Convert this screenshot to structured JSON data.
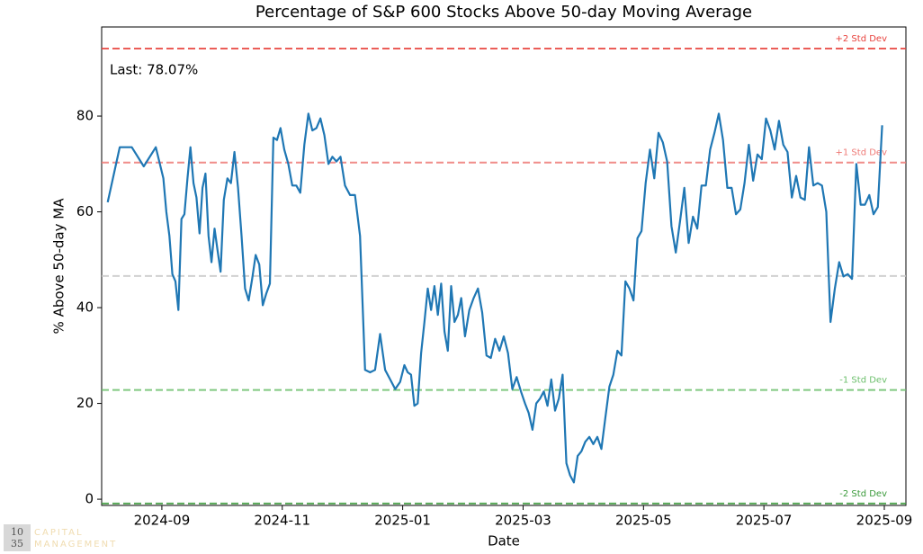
{
  "chart_data": {
    "type": "line",
    "title": "Percentage of S&P 600 Stocks Above 50-day Moving Average",
    "x_label": "Date",
    "y_label": "% Above 50-day MA",
    "annotation": "Last: 78.07%",
    "color": "#1f77b4",
    "xlim": [
      "2024-08",
      "2025-09"
    ],
    "xticks": [
      "2024-09",
      "2024-11",
      "2025-01",
      "2025-03",
      "2025-05",
      "2025-07",
      "2025-09"
    ],
    "ylim": [
      -1.3,
      98.6
    ],
    "yticks": [
      0,
      20,
      40,
      60,
      80
    ],
    "reference_lines": [
      {
        "value": 94.1,
        "label": "+2 Std Dev",
        "color": "#e8413c"
      },
      {
        "value": 70.3,
        "label": "+1 Std Dev",
        "color": "#ee7a76"
      },
      {
        "value": 46.6,
        "color": "#c8c8c8"
      },
      {
        "value": 22.8,
        "label": "-1 Std Dev",
        "color": "#6cbf6c"
      },
      {
        "value": -0.9,
        "label": "-2 Std Dev",
        "color": "#3a9a3a"
      }
    ],
    "x": [
      "2024-08",
      "2024-08",
      "2024-08",
      "2024-08",
      "2024-08",
      "2024-09",
      "2024-09",
      "2024-09",
      "2024-09",
      "2024-09",
      "2024-09",
      "2024-09",
      "2024-09",
      "2024-09",
      "2024-09",
      "2024-09",
      "2024-09",
      "2024-09",
      "2024-09",
      "2024-09",
      "2024-09",
      "2024-09",
      "2024-09",
      "2024-09",
      "2024-09",
      "2024-10",
      "2024-10",
      "2024-10",
      "2024-10",
      "2024-10",
      "2024-10",
      "2024-10",
      "2024-10",
      "2024-10",
      "2024-10",
      "2024-10",
      "2024-10",
      "2024-10",
      "2024-10",
      "2024-10",
      "2024-10",
      "2024-10",
      "2024-11",
      "2024-11",
      "2024-11",
      "2024-11",
      "2024-11",
      "2024-11",
      "2024-11",
      "2024-11",
      "2024-11",
      "2024-11",
      "2024-11",
      "2024-11",
      "2024-11",
      "2024-11",
      "2024-11",
      "2024-12",
      "2024-12",
      "2024-12",
      "2024-12",
      "2024-12",
      "2024-12",
      "2024-12",
      "2024-12",
      "2024-12",
      "2024-12",
      "2024-12",
      "2024-12",
      "2025-01",
      "2025-01",
      "2025-01",
      "2025-01",
      "2025-01",
      "2025-01",
      "2025-01",
      "2025-01",
      "2025-01",
      "2025-01",
      "2025-01",
      "2025-01",
      "2025-01",
      "2025-01",
      "2025-01",
      "2025-01",
      "2025-01",
      "2025-01",
      "2025-02",
      "2025-02",
      "2025-02",
      "2025-02",
      "2025-02",
      "2025-02",
      "2025-02",
      "2025-02",
      "2025-02",
      "2025-02",
      "2025-02",
      "2025-02",
      "2025-02",
      "2025-02",
      "2025-03",
      "2025-03",
      "2025-03",
      "2025-03",
      "2025-03",
      "2025-03",
      "2025-03",
      "2025-03",
      "2025-03",
      "2025-03",
      "2025-03",
      "2025-03",
      "2025-03",
      "2025-03",
      "2025-03",
      "2025-03",
      "2025-04",
      "2025-04",
      "2025-04",
      "2025-04",
      "2025-04",
      "2025-04",
      "2025-04",
      "2025-04",
      "2025-04",
      "2025-04",
      "2025-04",
      "2025-04",
      "2025-04",
      "2025-04",
      "2025-04",
      "2025-05",
      "2025-05",
      "2025-05",
      "2025-05",
      "2025-05",
      "2025-05",
      "2025-05",
      "2025-05",
      "2025-05",
      "2025-05",
      "2025-05",
      "2025-05",
      "2025-05",
      "2025-05",
      "2025-06",
      "2025-06",
      "2025-06",
      "2025-06",
      "2025-06",
      "2025-06",
      "2025-06",
      "2025-06",
      "2025-06",
      "2025-06",
      "2025-06",
      "2025-06",
      "2025-06",
      "2025-06",
      "2025-07",
      "2025-07",
      "2025-07",
      "2025-07",
      "2025-07",
      "2025-07",
      "2025-07",
      "2025-07",
      "2025-07",
      "2025-07",
      "2025-07",
      "2025-07",
      "2025-07",
      "2025-07",
      "2025-08",
      "2025-08",
      "2025-08",
      "2025-08",
      "2025-08",
      "2025-08",
      "2025-08",
      "2025-08",
      "2025-08",
      "2025-08",
      "2025-08",
      "2025-08",
      "2025-08",
      "2025-08"
    ],
    "values": [
      62,
      73.5,
      73.5,
      69.5,
      73.5,
      67,
      60,
      55,
      47,
      45.5,
      39.5,
      58.5,
      59.5,
      67,
      73.5,
      66,
      63,
      55.5,
      65,
      68,
      55,
      49.5,
      56.5,
      52,
      47.5,
      62.5,
      67,
      66,
      72.5,
      65,
      55,
      44,
      41.5,
      46,
      51,
      49,
      40.5,
      43,
      45,
      75.5,
      75,
      77.5,
      73,
      70,
      65.5,
      65.5,
      64,
      74,
      80.5,
      77,
      77.5,
      79.5,
      76,
      70,
      71.5,
      70.5,
      71.5,
      65.5,
      63.5,
      63.5,
      55,
      27,
      26.5,
      27,
      34.5,
      27,
      25,
      23,
      24.5,
      28,
      26.5,
      26,
      19.5,
      20,
      30.5,
      37,
      44,
      39.5,
      44.5,
      38.5,
      45,
      35,
      31,
      44.5,
      37,
      38.5,
      42,
      34,
      39.5,
      42,
      44,
      39,
      30,
      29.5,
      33.5,
      31,
      34,
      30.5,
      23,
      25.5,
      22.5,
      20,
      18,
      14.5,
      20,
      21,
      22.5,
      19.5,
      25,
      18.5,
      21,
      26,
      7.5,
      5,
      3.5,
      9,
      10,
      12,
      13,
      11.5,
      13,
      10.5,
      17,
      23.5,
      26,
      31,
      30,
      45.5,
      44,
      41.5,
      54.5,
      56,
      66,
      73,
      67,
      76.5,
      74.5,
      70.5,
      57,
      51.5,
      58,
      65,
      53.5,
      59,
      56.5,
      65.5,
      65.5,
      73,
      76.5,
      80.5,
      75,
      65,
      65,
      59.5,
      60.5,
      66,
      74,
      66.5,
      72,
      71,
      79.5,
      77,
      73,
      79,
      74,
      72.5,
      63,
      67.5,
      63,
      62.5,
      73.5,
      65.5,
      66,
      65.5,
      60,
      37,
      44,
      49.5,
      46.5,
      47,
      46,
      70,
      61.5,
      61.5,
      63.5,
      59.5,
      61,
      78.07
    ]
  },
  "logo": {
    "number": [
      "10",
      "35"
    ],
    "name": [
      "CAPITAL",
      "MANAGEMENT"
    ]
  }
}
